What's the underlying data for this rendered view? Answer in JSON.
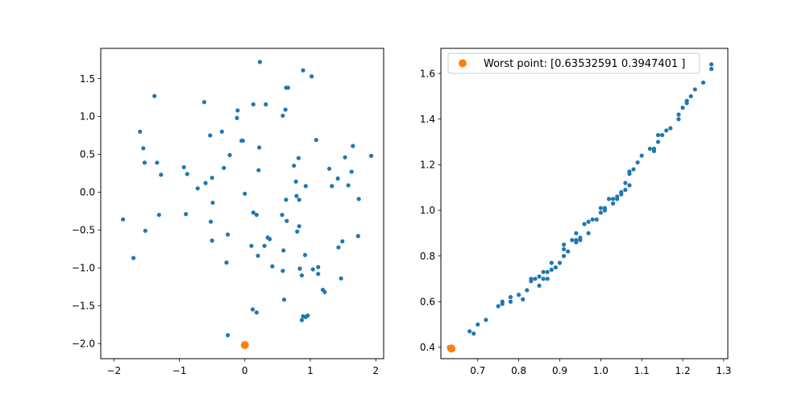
{
  "chart_data": [
    {
      "type": "scatter",
      "xlim": [
        -2.2,
        2.12
      ],
      "ylim": [
        -2.2,
        1.9
      ],
      "xticks": [
        -2,
        -1,
        0,
        1,
        2
      ],
      "yticks": [
        -2.0,
        -1.5,
        -1.0,
        -0.5,
        0.0,
        0.5,
        1.0,
        1.5
      ],
      "xtick_labels": [
        "−2",
        "−1",
        "0",
        "1",
        "2"
      ],
      "ytick_labels": [
        "−2.0",
        "−1.5",
        "−1.0",
        "−0.5",
        "0.0",
        "0.5",
        "1.0",
        "1.5"
      ],
      "grid": false,
      "series": [
        {
          "color": "#1f77b4",
          "points": [
            [
              0.23,
              1.72
            ],
            [
              0.89,
              1.61
            ],
            [
              1.02,
              1.53
            ],
            [
              0.63,
              1.38
            ],
            [
              0.66,
              1.38
            ],
            [
              -1.38,
              1.27
            ],
            [
              -0.62,
              1.19
            ],
            [
              0.13,
              1.16
            ],
            [
              0.32,
              1.16
            ],
            [
              0.62,
              1.09
            ],
            [
              -0.11,
              1.08
            ],
            [
              0.58,
              1.01
            ],
            [
              -0.12,
              0.98
            ],
            [
              -1.6,
              0.8
            ],
            [
              -0.35,
              0.8
            ],
            [
              -0.53,
              0.75
            ],
            [
              -0.03,
              0.68
            ],
            [
              -0.05,
              0.68
            ],
            [
              1.09,
              0.69
            ],
            [
              1.65,
              0.61
            ],
            [
              0.22,
              0.59
            ],
            [
              -1.55,
              0.58
            ],
            [
              -0.23,
              0.49
            ],
            [
              1.93,
              0.48
            ],
            [
              1.53,
              0.46
            ],
            [
              0.82,
              0.45
            ],
            [
              -1.53,
              0.39
            ],
            [
              -1.34,
              0.39
            ],
            [
              0.75,
              0.35
            ],
            [
              -0.93,
              0.33
            ],
            [
              -0.32,
              0.32
            ],
            [
              1.29,
              0.31
            ],
            [
              0.21,
              0.29
            ],
            [
              1.63,
              0.27
            ],
            [
              -0.88,
              0.24
            ],
            [
              -1.28,
              0.23
            ],
            [
              -0.5,
              0.19
            ],
            [
              1.42,
              0.18
            ],
            [
              0.78,
              0.14
            ],
            [
              -0.6,
              0.12
            ],
            [
              1.58,
              0.09
            ],
            [
              0.93,
              0.08
            ],
            [
              1.33,
              0.08
            ],
            [
              -0.72,
              0.05
            ],
            [
              0.0,
              -0.02
            ],
            [
              0.79,
              -0.05
            ],
            [
              1.74,
              -0.09
            ],
            [
              0.63,
              -0.1
            ],
            [
              0.83,
              -0.1
            ],
            [
              -0.49,
              -0.14
            ],
            [
              0.13,
              -0.27
            ],
            [
              -0.9,
              -0.29
            ],
            [
              0.18,
              -0.3
            ],
            [
              0.57,
              -0.3
            ],
            [
              -1.31,
              -0.3
            ],
            [
              -1.86,
              -0.36
            ],
            [
              0.64,
              -0.38
            ],
            [
              -0.52,
              -0.39
            ],
            [
              0.83,
              -0.45
            ],
            [
              0.8,
              -0.52
            ],
            [
              -1.52,
              -0.51
            ],
            [
              -0.26,
              -0.56
            ],
            [
              1.73,
              -0.58
            ],
            [
              0.35,
              -0.6
            ],
            [
              0.38,
              -0.62
            ],
            [
              -0.5,
              -0.64
            ],
            [
              1.49,
              -0.65
            ],
            [
              0.1,
              -0.71
            ],
            [
              0.3,
              -0.71
            ],
            [
              1.43,
              -0.73
            ],
            [
              0.59,
              -0.77
            ],
            [
              0.92,
              -0.83
            ],
            [
              0.2,
              -0.84
            ],
            [
              -1.7,
              -0.87
            ],
            [
              -0.28,
              -0.93
            ],
            [
              0.42,
              -0.98
            ],
            [
              1.12,
              -0.99
            ],
            [
              0.84,
              -1.01
            ],
            [
              1.04,
              -1.02
            ],
            [
              0.58,
              -1.04
            ],
            [
              0.87,
              -1.1
            ],
            [
              1.12,
              -1.08
            ],
            [
              1.47,
              -1.14
            ],
            [
              1.19,
              -1.29
            ],
            [
              1.22,
              -1.32
            ],
            [
              0.6,
              -1.42
            ],
            [
              0.12,
              -1.55
            ],
            [
              0.18,
              -1.59
            ],
            [
              0.89,
              -1.64
            ],
            [
              0.87,
              -1.69
            ],
            [
              0.93,
              -1.65
            ],
            [
              0.96,
              -1.63
            ],
            [
              -0.26,
              -1.89
            ]
          ]
        },
        {
          "color": "#ff7f0e",
          "points": [
            [
              0.0,
              -2.02
            ]
          ]
        }
      ]
    },
    {
      "type": "scatter",
      "xlim": [
        0.61,
        1.31
      ],
      "ylim": [
        0.35,
        1.71
      ],
      "xticks": [
        0.7,
        0.8,
        0.9,
        1.0,
        1.1,
        1.2,
        1.3
      ],
      "yticks": [
        0.4,
        0.6,
        0.8,
        1.0,
        1.2,
        1.4,
        1.6
      ],
      "xtick_labels": [
        "0.7",
        "0.8",
        "0.9",
        "1.0",
        "1.1",
        "1.2",
        "1.3"
      ],
      "ytick_labels": [
        "0.4",
        "0.6",
        "0.8",
        "1.0",
        "1.2",
        "1.4",
        "1.6"
      ],
      "grid": false,
      "legend": {
        "placement": "top-left",
        "entries": [
          "Worst point: [0.63532591 0.3947401 ]"
        ]
      },
      "series": [
        {
          "color": "#1f77b4",
          "points": [
            [
              0.64,
              0.39
            ],
            [
              0.63,
              0.4
            ],
            [
              0.68,
              0.47
            ],
            [
              0.69,
              0.46
            ],
            [
              0.7,
              0.5
            ],
            [
              0.72,
              0.52
            ],
            [
              0.75,
              0.58
            ],
            [
              0.76,
              0.6
            ],
            [
              0.76,
              0.59
            ],
            [
              0.78,
              0.62
            ],
            [
              0.78,
              0.6
            ],
            [
              0.8,
              0.63
            ],
            [
              0.81,
              0.61
            ],
            [
              0.82,
              0.65
            ],
            [
              0.83,
              0.7
            ],
            [
              0.83,
              0.69
            ],
            [
              0.84,
              0.7
            ],
            [
              0.85,
              0.67
            ],
            [
              0.85,
              0.71
            ],
            [
              0.86,
              0.73
            ],
            [
              0.86,
              0.7
            ],
            [
              0.87,
              0.7
            ],
            [
              0.87,
              0.73
            ],
            [
              0.88,
              0.74
            ],
            [
              0.88,
              0.77
            ],
            [
              0.89,
              0.75
            ],
            [
              0.9,
              0.77
            ],
            [
              0.91,
              0.8
            ],
            [
              0.91,
              0.83
            ],
            [
              0.91,
              0.85
            ],
            [
              0.92,
              0.82
            ],
            [
              0.93,
              0.87
            ],
            [
              0.94,
              0.86
            ],
            [
              0.94,
              0.87
            ],
            [
              0.94,
              0.9
            ],
            [
              0.95,
              0.87
            ],
            [
              0.95,
              0.88
            ],
            [
              0.96,
              0.94
            ],
            [
              0.97,
              0.9
            ],
            [
              0.97,
              0.95
            ],
            [
              0.98,
              0.96
            ],
            [
              0.99,
              0.96
            ],
            [
              1.0,
              1.01
            ],
            [
              1.0,
              0.99
            ],
            [
              1.01,
              1.01
            ],
            [
              1.01,
              1.0
            ],
            [
              1.02,
              1.05
            ],
            [
              1.03,
              1.03
            ],
            [
              1.03,
              1.05
            ],
            [
              1.04,
              1.06
            ],
            [
              1.04,
              1.05
            ],
            [
              1.05,
              1.08
            ],
            [
              1.05,
              1.07
            ],
            [
              1.06,
              1.09
            ],
            [
              1.06,
              1.12
            ],
            [
              1.07,
              1.11
            ],
            [
              1.07,
              1.16
            ],
            [
              1.07,
              1.17
            ],
            [
              1.08,
              1.18
            ],
            [
              1.09,
              1.21
            ],
            [
              1.1,
              1.24
            ],
            [
              1.12,
              1.27
            ],
            [
              1.13,
              1.26
            ],
            [
              1.13,
              1.27
            ],
            [
              1.14,
              1.3
            ],
            [
              1.14,
              1.33
            ],
            [
              1.15,
              1.33
            ],
            [
              1.16,
              1.35
            ],
            [
              1.17,
              1.36
            ],
            [
              1.19,
              1.4
            ],
            [
              1.19,
              1.42
            ],
            [
              1.2,
              1.45
            ],
            [
              1.21,
              1.47
            ],
            [
              1.21,
              1.48
            ],
            [
              1.22,
              1.5
            ],
            [
              1.23,
              1.53
            ],
            [
              1.25,
              1.56
            ],
            [
              1.27,
              1.62
            ],
            [
              1.27,
              1.64
            ]
          ]
        },
        {
          "color": "#ff7f0e",
          "points": [
            [
              0.63532591,
              0.3947401
            ]
          ]
        }
      ]
    }
  ]
}
